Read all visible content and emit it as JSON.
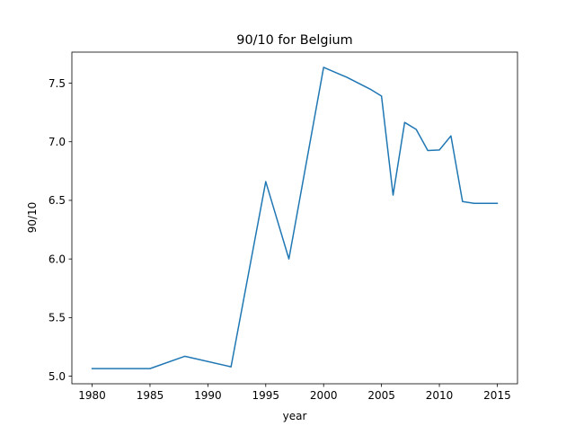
{
  "chart_data": {
    "type": "line",
    "title": "90/10 for Belgium",
    "xlabel": "year",
    "ylabel": "90/10",
    "xlim": [
      1978.25,
      2016.75
    ],
    "ylim": [
      4.9355,
      7.7645
    ],
    "xticks": [
      1980,
      1985,
      1990,
      1995,
      2000,
      2005,
      2010,
      2015
    ],
    "yticks": [
      5.0,
      5.5,
      6.0,
      6.5,
      7.0,
      7.5
    ],
    "ytick_labels": [
      "5.0",
      "5.5",
      "6.0",
      "6.5",
      "7.0",
      "7.5"
    ],
    "grid": false,
    "legend": "none",
    "line_color": "#1f77b4",
    "series": [
      {
        "x": [
          1980,
          1985,
          1988,
          1992,
          1995,
          1997,
          2000,
          2002,
          2004,
          2005,
          2006,
          2007,
          2008,
          2009,
          2010,
          2011,
          2012,
          2013,
          2015
        ],
        "y": [
          5.065,
          5.065,
          5.17,
          5.08,
          6.66,
          6.0,
          7.635,
          7.55,
          7.45,
          7.39,
          6.545,
          7.165,
          7.105,
          6.925,
          6.93,
          7.05,
          6.49,
          6.475,
          6.475
        ]
      }
    ]
  }
}
